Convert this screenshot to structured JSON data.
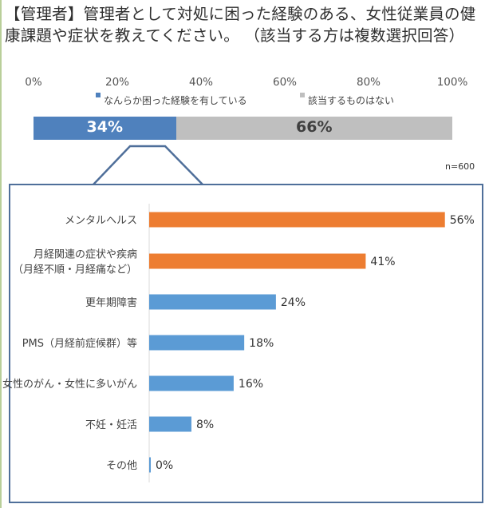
{
  "title": {
    "line1": "【管理者】管理者として対処に困った経験のある、女性従業員の健",
    "line2": "康課題や症状を教えてください。 （該当する方は複数選択回答）"
  },
  "chart_data": [
    {
      "type": "bar",
      "orientation": "horizontal-stacked",
      "xlim": [
        0,
        100
      ],
      "tick_labels": [
        "0%",
        "20%",
        "40%",
        "60%",
        "80%",
        "100%"
      ],
      "series": [
        {
          "name": "なんらか困った経験を有している",
          "values": [
            34
          ],
          "label": "34%",
          "color": "#4f81bd"
        },
        {
          "name": "該当するものはない",
          "values": [
            66
          ],
          "label": "66%",
          "color": "#bfbfbf"
        }
      ],
      "note": "n=600",
      "legend_position": "top"
    },
    {
      "type": "bar",
      "orientation": "horizontal",
      "xlim": [
        0,
        100
      ],
      "categories": [
        {
          "lines": [
            "メンタルヘルス"
          ],
          "value": 56,
          "label": "56%",
          "color": "#ed7d31"
        },
        {
          "lines": [
            "月経関連の症状や疾病",
            "（月経不順・月経痛など）"
          ],
          "value": 41,
          "label": "41%",
          "color": "#ed7d31"
        },
        {
          "lines": [
            "更年期障害"
          ],
          "value": 24,
          "label": "24%",
          "color": "#5b9bd5"
        },
        {
          "lines": [
            "PMS（月経前症候群）等"
          ],
          "value": 18,
          "label": "18%",
          "color": "#5b9bd5"
        },
        {
          "lines": [
            "女性のがん・女性に多いがん"
          ],
          "value": 16,
          "label": "16%",
          "color": "#5b9bd5"
        },
        {
          "lines": [
            "不妊・妊活"
          ],
          "value": 8,
          "label": "8%",
          "color": "#5b9bd5"
        },
        {
          "lines": [
            "その他"
          ],
          "value": 0,
          "label": "0%",
          "color": "#5b9bd5"
        }
      ]
    }
  ]
}
